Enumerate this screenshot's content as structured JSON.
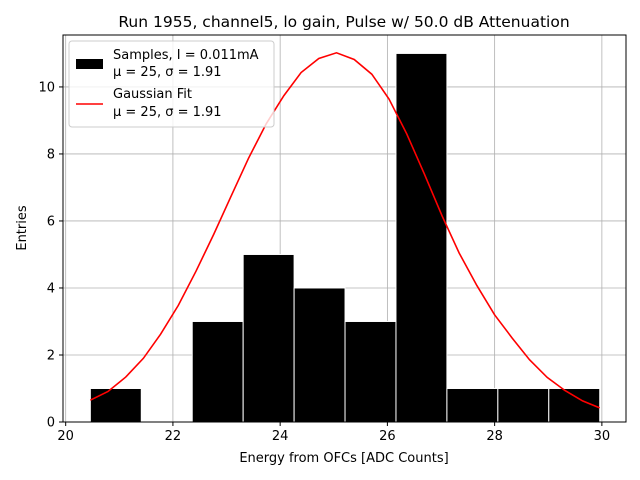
{
  "chart_data": {
    "type": "bar",
    "title": "Run 1955, channel5, lo gain, Pulse w/ 50.0 dB Attenuation",
    "xlabel": "Energy from OFCs [ADC Counts]",
    "ylabel": "Entries",
    "xlim": [
      19.95,
      30.45
    ],
    "ylim": [
      0,
      11.55
    ],
    "xticks": [
      20,
      22,
      24,
      26,
      28,
      30
    ],
    "yticks": [
      0,
      2,
      4,
      6,
      8,
      10
    ],
    "grid": true,
    "legend_position": "top-left",
    "colors": {
      "bars": "#000000",
      "bar_edge": "#ffffff",
      "fit": "#ff0000",
      "grid": "#b0b0b0"
    },
    "series": [
      {
        "name": "Samples, I = 0.011mA",
        "name_line2": "μ = 25, σ = 1.91",
        "kind": "histogram",
        "bins": [
          {
            "x0": 20.46,
            "x1": 21.41,
            "value": 1
          },
          {
            "x0": 21.41,
            "x1": 22.36,
            "value": 0
          },
          {
            "x0": 22.36,
            "x1": 23.31,
            "value": 3
          },
          {
            "x0": 23.31,
            "x1": 24.26,
            "value": 5
          },
          {
            "x0": 24.26,
            "x1": 25.21,
            "value": 4
          },
          {
            "x0": 25.21,
            "x1": 26.16,
            "value": 3
          },
          {
            "x0": 26.16,
            "x1": 27.11,
            "value": 11
          },
          {
            "x0": 27.11,
            "x1": 28.06,
            "value": 1
          },
          {
            "x0": 28.06,
            "x1": 29.01,
            "value": 1
          },
          {
            "x0": 29.01,
            "x1": 29.96,
            "value": 1
          }
        ]
      },
      {
        "name": "Gaussian Fit",
        "name_line2": "μ = 25, σ = 1.91",
        "kind": "line",
        "points": [
          [
            20.46,
            0.65
          ],
          [
            20.79,
            0.91
          ],
          [
            21.12,
            1.34
          ],
          [
            21.45,
            1.9
          ],
          [
            21.77,
            2.62
          ],
          [
            22.1,
            3.48
          ],
          [
            22.43,
            4.5
          ],
          [
            22.76,
            5.6
          ],
          [
            23.08,
            6.72
          ],
          [
            23.41,
            7.87
          ],
          [
            23.74,
            8.9
          ],
          [
            24.07,
            9.74
          ],
          [
            24.39,
            10.43
          ],
          [
            24.72,
            10.85
          ],
          [
            25.05,
            11.02
          ],
          [
            25.38,
            10.82
          ],
          [
            25.71,
            10.38
          ],
          [
            26.03,
            9.64
          ],
          [
            26.36,
            8.6
          ],
          [
            26.69,
            7.4
          ],
          [
            27.02,
            6.15
          ],
          [
            27.34,
            5.04
          ],
          [
            27.67,
            4.07
          ],
          [
            28.0,
            3.2
          ],
          [
            28.33,
            2.5
          ],
          [
            28.65,
            1.86
          ],
          [
            28.98,
            1.33
          ],
          [
            29.31,
            0.94
          ],
          [
            29.64,
            0.63
          ],
          [
            29.96,
            0.42
          ]
        ]
      }
    ]
  }
}
